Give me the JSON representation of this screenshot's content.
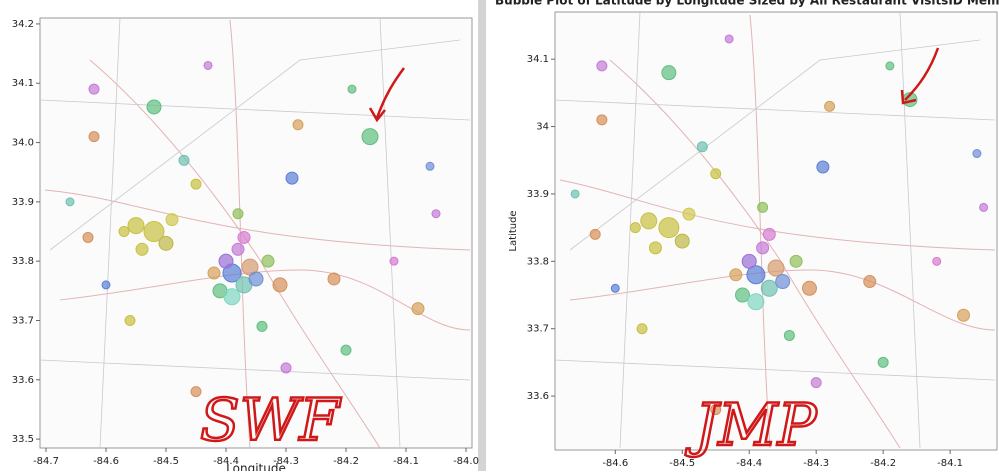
{
  "chart_data": [
    {
      "type": "scatter",
      "x_label": "Longitude",
      "xlim": [
        -84.71,
        -83.99
      ],
      "ylim": [
        33.485,
        34.21
      ],
      "xticks": [
        -84.7,
        -84.6,
        -84.5,
        -84.4,
        -84.3,
        -84.2,
        -84.1,
        {
          "value": -84.0,
          "label": "-84.0"
        }
      ],
      "yticks": [
        33.5,
        33.6,
        33.7,
        33.8,
        33.9,
        {
          "value": 34.0,
          "label": "34.0"
        },
        34.1,
        34.2
      ],
      "x": [
        -84.39,
        -84.37,
        -84.4,
        -84.36,
        -84.41,
        -84.38,
        -84.35,
        -84.42,
        -84.39,
        -84.33,
        -84.37,
        -84.31,
        -84.52,
        -84.55,
        -84.5,
        -84.54,
        -84.49,
        -84.57,
        -84.45,
        -84.16,
        -84.52,
        -84.62,
        -84.29,
        -84.05,
        -84.08,
        -84.63,
        -84.19,
        -84.43,
        -84.66,
        -84.3,
        -84.45,
        -84.2,
        -84.56,
        -84.6,
        -84.12,
        -84.28,
        -84.34,
        -84.62,
        -84.22,
        -84.47,
        -84.38,
        -84.06
      ],
      "values": [
        33.78,
        33.76,
        33.8,
        33.79,
        33.75,
        33.82,
        33.77,
        33.78,
        33.74,
        33.8,
        33.84,
        33.76,
        33.85,
        33.86,
        33.83,
        33.82,
        33.87,
        33.85,
        33.93,
        34.01,
        34.06,
        34.01,
        33.94,
        33.88,
        33.72,
        33.84,
        34.09,
        34.13,
        33.9,
        33.62,
        33.58,
        33.65,
        33.7,
        33.76,
        33.8,
        34.03,
        33.69,
        34.09,
        33.77,
        33.97,
        33.88,
        33.96
      ],
      "sizes": [
        9,
        8,
        7,
        8,
        7,
        6,
        7,
        6,
        8,
        6,
        6,
        7,
        10,
        8,
        7,
        6,
        6,
        5,
        5,
        8,
        7,
        5,
        6,
        4,
        6,
        5,
        4,
        4,
        4,
        5,
        5,
        5,
        5,
        4,
        4,
        5,
        5,
        5,
        6,
        5,
        5,
        4
      ],
      "colors": [
        "#5a7fd6",
        "#6fc2b0",
        "#9a6fd6",
        "#d69a6f",
        "#5fbf7f",
        "#c47ad6",
        "#6f8fd6",
        "#d6a05a",
        "#7fd6c2",
        "#8fbf5a",
        "#d67ad0",
        "#d6905a",
        "#c8c040",
        "#c8c040",
        "#bdb845",
        "#c8c040",
        "#d0c850",
        "#c8c040",
        "#c8c040",
        "#5fbf7f",
        "#5fbf7f",
        "#d6905a",
        "#5a7fd6",
        "#c47ad6",
        "#d6a05a",
        "#d6905a",
        "#5fbf7f",
        "#c47ad6",
        "#6fc2b0",
        "#c47ad6",
        "#d6905a",
        "#5fbf7f",
        "#c8c040",
        "#5a7fd6",
        "#d67ad0",
        "#d6a05a",
        "#5fbf7f",
        "#c47ad6",
        "#d6905a",
        "#6fc2b0",
        "#8fbf5a",
        "#6f8fd6"
      ],
      "annotation": "SWF"
    },
    {
      "type": "scatter",
      "title": "Bubble Plot of Latitude by Longitude Sized by All Restaurant VisitsID Member",
      "y_label": "Latitude",
      "xlim": [
        -84.69,
        -84.03
      ],
      "ylim": [
        33.52,
        34.17
      ],
      "xticks": [
        -84.6,
        -84.5,
        -84.4,
        -84.3,
        -84.2,
        -84.1
      ],
      "yticks": [
        33.6,
        33.7,
        33.8,
        33.9,
        34,
        34.1
      ],
      "x": [
        -84.39,
        -84.37,
        -84.4,
        -84.36,
        -84.41,
        -84.38,
        -84.35,
        -84.42,
        -84.39,
        -84.33,
        -84.37,
        -84.31,
        -84.52,
        -84.55,
        -84.5,
        -84.54,
        -84.49,
        -84.57,
        -84.45,
        -84.16,
        -84.52,
        -84.62,
        -84.29,
        -84.05,
        -84.08,
        -84.63,
        -84.19,
        -84.43,
        -84.66,
        -84.3,
        -84.45,
        -84.2,
        -84.56,
        -84.6,
        -84.12,
        -84.28,
        -84.34,
        -84.62,
        -84.22,
        -84.47,
        -84.38,
        -84.06
      ],
      "values": [
        33.78,
        33.76,
        33.8,
        33.79,
        33.75,
        33.82,
        33.77,
        33.78,
        33.74,
        33.8,
        33.84,
        33.76,
        33.85,
        33.86,
        33.83,
        33.82,
        33.87,
        33.85,
        33.93,
        34.04,
        34.08,
        34.01,
        33.94,
        33.88,
        33.72,
        33.84,
        34.09,
        34.13,
        33.9,
        33.62,
        33.58,
        33.65,
        33.7,
        33.76,
        33.8,
        34.03,
        33.69,
        34.09,
        33.77,
        33.97,
        33.88,
        33.96
      ],
      "sizes": [
        9,
        8,
        7,
        8,
        7,
        6,
        7,
        6,
        8,
        6,
        6,
        7,
        10,
        8,
        7,
        6,
        6,
        5,
        5,
        7,
        7,
        5,
        6,
        4,
        6,
        5,
        4,
        4,
        4,
        5,
        5,
        5,
        5,
        4,
        4,
        5,
        5,
        5,
        6,
        5,
        5,
        4
      ],
      "colors": [
        "#5a7fd6",
        "#6fc2b0",
        "#9a6fd6",
        "#d69a6f",
        "#5fbf7f",
        "#c47ad6",
        "#6f8fd6",
        "#d6a05a",
        "#7fd6c2",
        "#8fbf5a",
        "#d67ad0",
        "#d6905a",
        "#c8c040",
        "#c8c040",
        "#bdb845",
        "#c8c040",
        "#d0c850",
        "#c8c040",
        "#c8c040",
        "#5fbf7f",
        "#5fbf7f",
        "#d6905a",
        "#5a7fd6",
        "#c47ad6",
        "#d6a05a",
        "#d6905a",
        "#5fbf7f",
        "#c47ad6",
        "#6fc2b0",
        "#c47ad6",
        "#d6905a",
        "#5fbf7f",
        "#c8c040",
        "#5a7fd6",
        "#d67ad0",
        "#d6a05a",
        "#5fbf7f",
        "#c47ad6",
        "#d6905a",
        "#6fc2b0",
        "#8fbf5a",
        "#6f8fd6"
      ],
      "annotation": "JMP"
    }
  ]
}
